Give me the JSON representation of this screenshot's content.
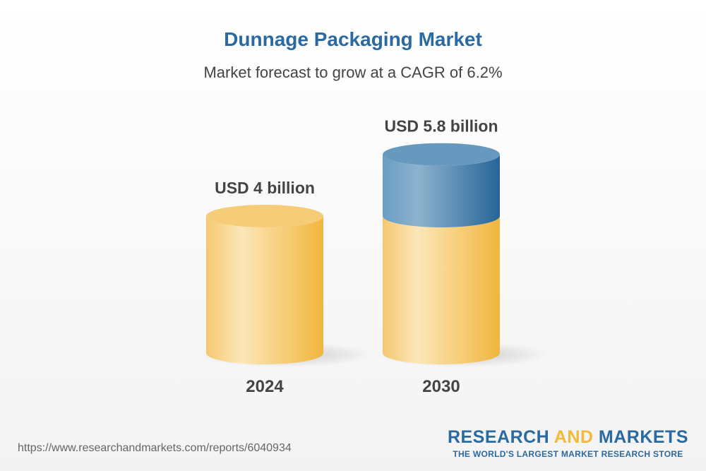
{
  "chart_data": {
    "type": "bar",
    "style": "3d-cylinder",
    "title": "Dunnage Packaging Market",
    "subtitle": "Market forecast to grow at a CAGR of 6.2%",
    "categories": [
      "2024",
      "2030"
    ],
    "values": [
      4,
      5.8
    ],
    "unit": "USD billion",
    "data_labels": [
      "USD 4 billion",
      "USD 5.8 billion"
    ],
    "colors": {
      "base": "#f2c05a",
      "growth": "#2a6aa0"
    }
  },
  "footer": {
    "url": "https://www.researchandmarkets.com/reports/6040934",
    "logo_part1": "RESEARCH ",
    "logo_part2": "AND",
    "logo_part3": " MARKETS",
    "tagline": "THE WORLD'S LARGEST MARKET RESEARCH STORE"
  }
}
